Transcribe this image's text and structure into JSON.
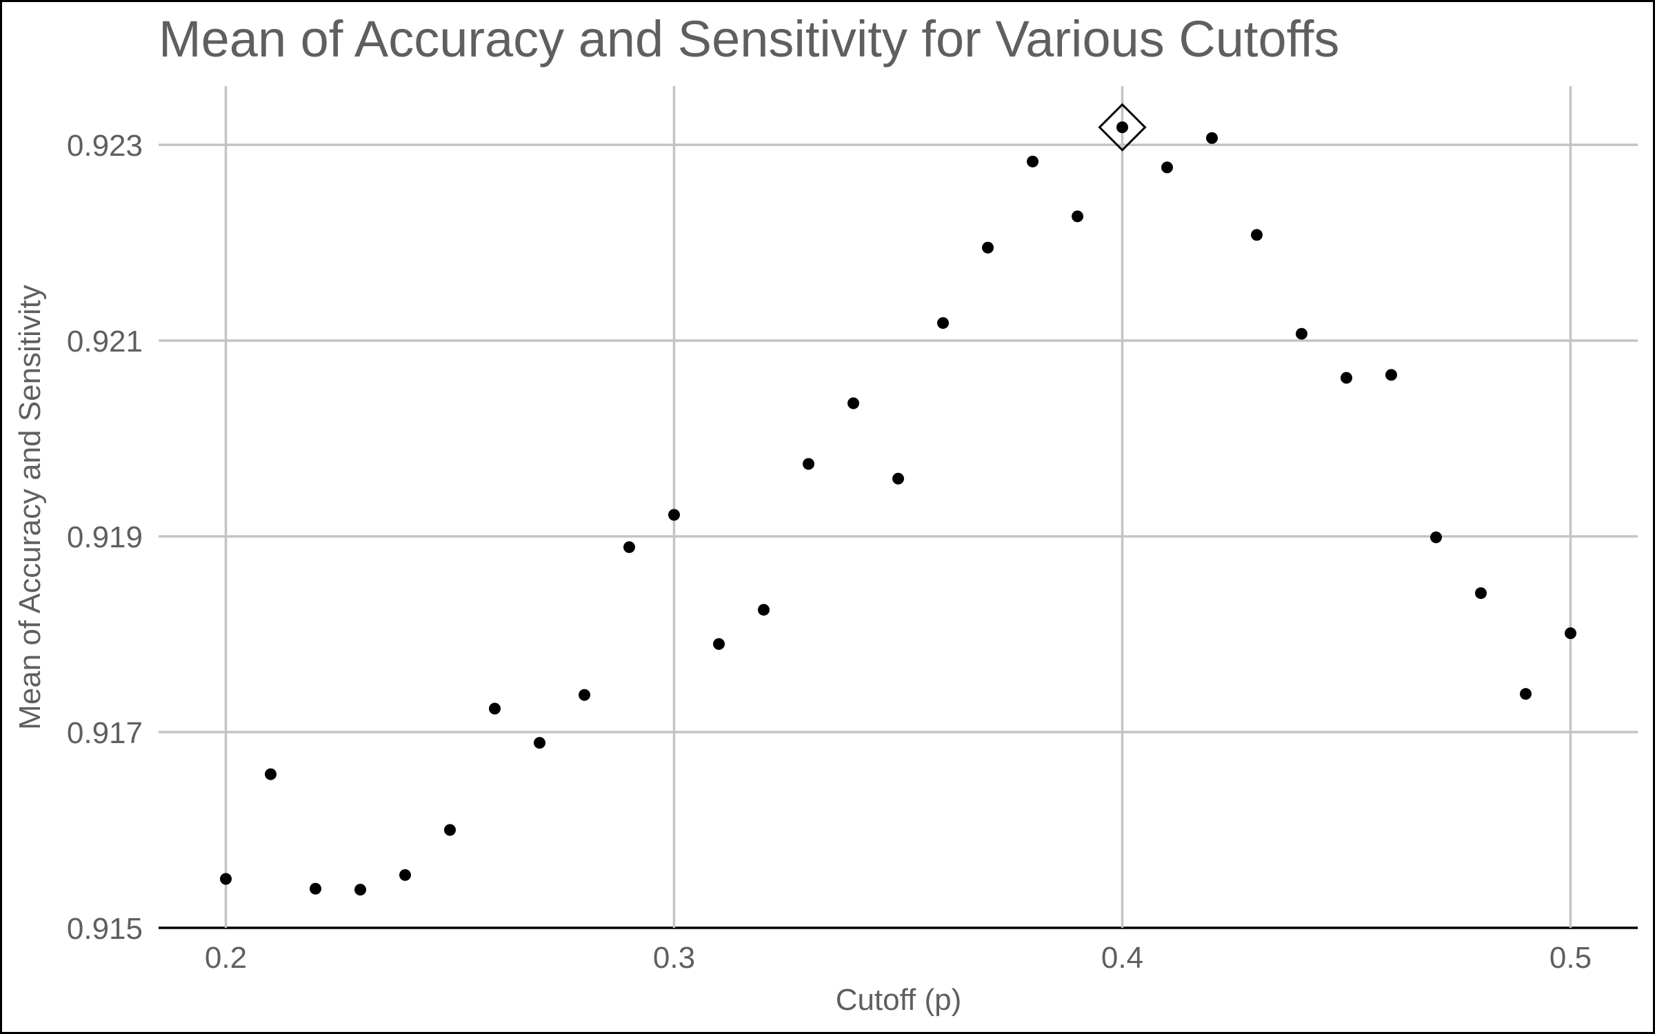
{
  "chart_data": {
    "type": "scatter",
    "title": "Mean of Accuracy and Sensitivity for Various Cutoffs",
    "xlabel": "Cutoff (p)",
    "ylabel": "Mean of Accuracy and Sensitivity",
    "xlim": [
      0.185,
      0.515
    ],
    "ylim": [
      0.915,
      0.9236
    ],
    "x_ticks": [
      0.2,
      0.3,
      0.4,
      0.5
    ],
    "x_tick_labels": [
      "0.2",
      "0.3",
      "0.4",
      "0.5"
    ],
    "y_ticks": [
      0.915,
      0.917,
      0.919,
      0.921,
      0.923
    ],
    "y_tick_labels": [
      "0.915",
      "0.917",
      "0.919",
      "0.921",
      "0.923"
    ],
    "grid": true,
    "highlight": {
      "x": 0.4,
      "y": 0.92318,
      "marker": "diamond"
    },
    "series": [
      {
        "x": [
          0.2,
          0.21,
          0.22,
          0.23,
          0.24,
          0.25,
          0.26,
          0.27,
          0.28,
          0.29,
          0.3,
          0.31,
          0.32,
          0.33,
          0.34,
          0.35,
          0.36,
          0.37,
          0.38,
          0.39,
          0.4,
          0.41,
          0.42,
          0.43,
          0.44,
          0.45,
          0.46,
          0.47,
          0.48,
          0.49,
          0.5
        ],
        "y": [
          0.9155,
          0.91657,
          0.9154,
          0.91539,
          0.91554,
          0.916,
          0.91724,
          0.91689,
          0.91738,
          0.91889,
          0.91922,
          0.9179,
          0.91825,
          0.91974,
          0.92036,
          0.91959,
          0.92118,
          0.92195,
          0.92283,
          0.92227,
          0.92318,
          0.92277,
          0.92307,
          0.92208,
          0.92107,
          0.92062,
          0.92065,
          0.91899,
          0.91842,
          0.91739,
          0.91801
        ]
      }
    ]
  }
}
